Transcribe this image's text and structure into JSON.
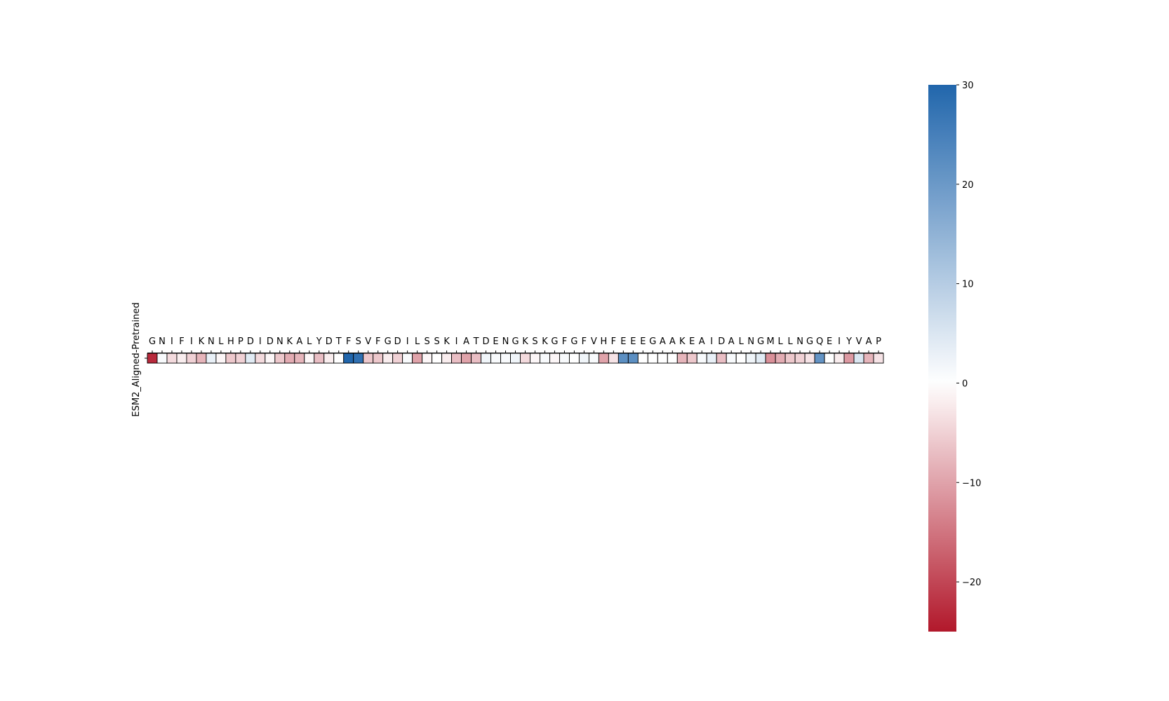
{
  "chart_data": {
    "type": "heatmap",
    "title": "",
    "row_labels": [
      "ESM2_Aligned-Pretrained"
    ],
    "columns": [
      "G",
      "N",
      "I",
      "F",
      "I",
      "K",
      "N",
      "L",
      "H",
      "P",
      "D",
      "I",
      "D",
      "N",
      "K",
      "A",
      "L",
      "Y",
      "D",
      "T",
      "F",
      "S",
      "V",
      "F",
      "G",
      "D",
      "I",
      "L",
      "S",
      "S",
      "K",
      "I",
      "A",
      "T",
      "D",
      "E",
      "N",
      "G",
      "K",
      "S",
      "K",
      "G",
      "F",
      "G",
      "F",
      "V",
      "H",
      "F",
      "E",
      "E",
      "E",
      "G",
      "A",
      "A",
      "K",
      "E",
      "A",
      "I",
      "D",
      "A",
      "L",
      "N",
      "G",
      "M",
      "L",
      "L",
      "N",
      "G",
      "Q",
      "E",
      "I",
      "Y",
      "V",
      "A",
      "P"
    ],
    "values": [
      [
        -23,
        1,
        -4,
        -2,
        -5,
        -8,
        3,
        -1,
        -6,
        -5,
        4,
        -4,
        -1,
        -6,
        -9,
        -8,
        -1,
        -7,
        -2,
        0,
        30,
        28,
        -6,
        -6,
        -2,
        -5,
        1,
        -10,
        -1,
        0,
        -2,
        -7,
        -10,
        -7,
        2,
        1,
        1,
        2,
        -4,
        -1,
        1,
        -1,
        1,
        0,
        2,
        1,
        -10,
        -3,
        22,
        22,
        0,
        0,
        0,
        0,
        -8,
        -6,
        1,
        3,
        -7,
        1,
        0,
        2,
        4,
        -12,
        -9,
        -6,
        -5,
        -3,
        21,
        0,
        -2,
        -11,
        5,
        -8,
        -3
      ]
    ],
    "colorbar": {
      "vmin": -25,
      "vmax": 30,
      "ticks": [
        -20,
        -10,
        0,
        10,
        20,
        30
      ],
      "tick_labels": [
        "−20",
        "−10",
        "0",
        "10",
        "20",
        "30"
      ]
    },
    "colors": {
      "negative": "#b2182b",
      "neutral": "#ffffff",
      "positive": "#2166ac"
    }
  }
}
